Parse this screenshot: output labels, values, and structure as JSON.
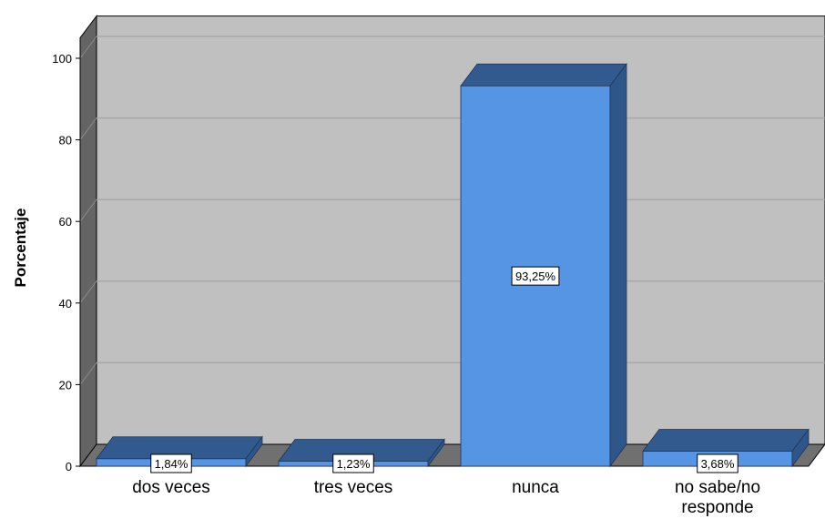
{
  "chart_data": {
    "type": "bar",
    "categories": [
      "dos veces",
      "tres veces",
      "nunca",
      "no sabe/no responde"
    ],
    "category_label_lines": [
      [
        "dos veces"
      ],
      [
        "tres veces"
      ],
      [
        "nunca"
      ],
      [
        "no sabe/no",
        "responde"
      ]
    ],
    "values": [
      1.84,
      1.23,
      93.25,
      3.68
    ],
    "data_labels": [
      "1,84%",
      "1,23%",
      "93,25%",
      "3,68%"
    ],
    "ylabel": "Porcentaje",
    "ylim": [
      0,
      100
    ],
    "yticks": [
      0,
      20,
      40,
      60,
      80,
      100
    ],
    "grid": true,
    "three_d": true,
    "colors": {
      "bar_front": "#5595e4",
      "bar_top": "#335a8e",
      "bar_side": "#2f5688",
      "plot_back": "#c0c0c0",
      "plot_floor": "#707070",
      "plot_wall": "#646464",
      "grid": "#a8a8a8"
    }
  }
}
